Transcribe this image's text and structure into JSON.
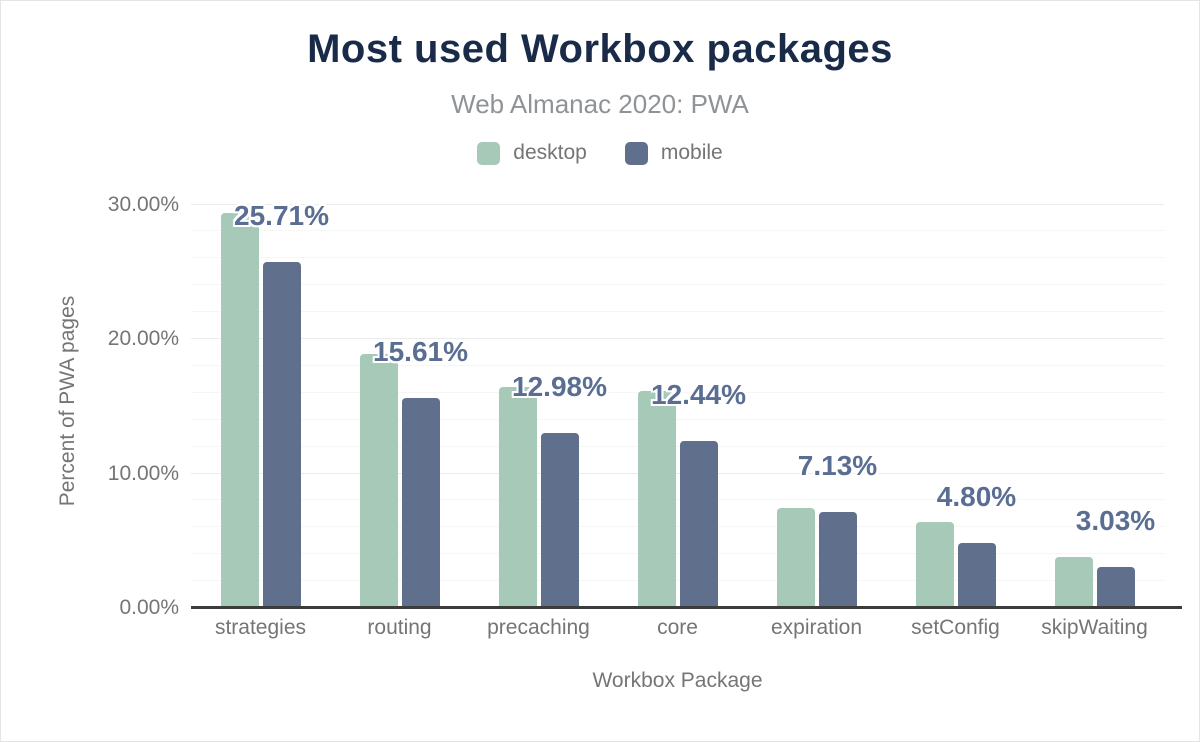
{
  "header": {
    "title": "Most used Workbox packages",
    "subtitle": "Web Almanac 2020: PWA"
  },
  "legend": {
    "items": [
      {
        "label": "desktop",
        "color": "#a7c9b8"
      },
      {
        "label": "mobile",
        "color": "#5f6f8c"
      }
    ]
  },
  "axes": {
    "y_title": "Percent of PWA pages",
    "x_title": "Workbox Package",
    "y_ticks": [
      "0.00%",
      "10.00%",
      "20.00%",
      "30.00%"
    ]
  },
  "chart_data": {
    "type": "bar",
    "title": "Most used Workbox packages",
    "subtitle": "Web Almanac 2020: PWA",
    "categories": [
      "strategies",
      "routing",
      "precaching",
      "core",
      "expiration",
      "setConfig",
      "skipWaiting"
    ],
    "series": [
      {
        "name": "desktop",
        "color": "#a7c9b8",
        "values": [
          29.4,
          18.9,
          16.4,
          16.1,
          7.4,
          6.4,
          3.8
        ]
      },
      {
        "name": "mobile",
        "color": "#5f6f8c",
        "values": [
          25.71,
          15.61,
          12.98,
          12.44,
          7.13,
          4.8,
          3.03
        ]
      }
    ],
    "annotations": [
      "25.71%",
      "15.61%",
      "12.98%",
      "12.44%",
      "7.13%",
      "4.80%",
      "3.03%"
    ],
    "annotation_series": "mobile",
    "xlabel": "Workbox Package",
    "ylabel": "Percent of PWA pages",
    "ylim": [
      0,
      30
    ],
    "y_tick_step": 10,
    "minor_grid_step": 2,
    "grid": true,
    "legend_position": "top"
  },
  "colors": {
    "title": "#1a2b49",
    "subtitle": "#8f9396",
    "axis_text": "#757575",
    "annotation": "#5a6d92",
    "axis_line": "#3c3c3c",
    "grid_major": "#ebebeb",
    "grid_minor": "#f6f6f6",
    "background": "#ffffff"
  }
}
